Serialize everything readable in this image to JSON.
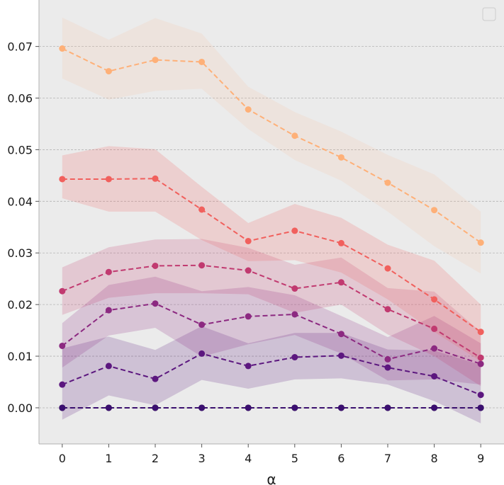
{
  "chart_data": {
    "type": "line",
    "xlabel": "α",
    "ylabel": "",
    "title": "",
    "x": [
      0,
      1,
      2,
      3,
      4,
      5,
      6,
      7,
      8,
      9
    ],
    "x_ticks": [
      "0",
      "1",
      "2",
      "3",
      "4",
      "5",
      "6",
      "7",
      "8",
      "9"
    ],
    "y_ticks": [
      "0.00",
      "0.01",
      "0.02",
      "0.03",
      "0.04",
      "0.05",
      "0.06",
      "0.07"
    ],
    "xlim": [
      -0.5,
      9.5
    ],
    "ylim": [
      -0.007,
      0.079
    ],
    "grid": "horizontal dashed",
    "legend": "top-right, empty",
    "background": "#ebebeb",
    "series": [
      {
        "color": "#000004",
        "values": [
          0.0,
          0.0,
          0.0,
          0.0,
          0.0,
          0.0,
          0.0,
          0.0,
          0.0,
          0.0
        ],
        "lower": [
          0.0,
          0.0,
          0.0,
          0.0,
          0.0,
          0.0,
          0.0,
          0.0,
          0.0,
          0.0
        ],
        "upper": [
          0.0,
          0.0,
          0.0,
          0.0,
          0.0,
          0.0,
          0.0,
          0.0,
          0.0,
          0.0
        ]
      },
      {
        "color": "#3b0f70",
        "values": [
          0.0,
          0.0,
          0.0,
          0.0,
          0.0,
          0.0,
          0.0,
          0.0,
          0.0,
          0.0
        ],
        "lower": [
          0.0,
          0.0,
          0.0,
          0.0,
          0.0,
          0.0,
          0.0,
          0.0,
          0.0,
          0.0
        ],
        "upper": [
          0.0,
          0.0,
          0.0,
          0.0,
          0.0,
          0.0,
          0.0,
          0.0,
          0.0,
          0.0
        ]
      },
      {
        "color": "#5c177f",
        "values": [
          0.0045,
          0.0081,
          0.0056,
          0.0105,
          0.0081,
          0.0098,
          0.0101,
          0.0078,
          0.0061,
          0.0025
        ],
        "lower": [
          -0.0023,
          0.0024,
          0.0005,
          0.0054,
          0.0037,
          0.0055,
          0.0057,
          0.0045,
          0.0013,
          -0.003
        ],
        "upper": [
          0.0115,
          0.0138,
          0.0112,
          0.0158,
          0.0125,
          0.0145,
          0.0145,
          0.0113,
          0.0111,
          0.0083
        ]
      },
      {
        "color": "#8c2981",
        "values": [
          0.012,
          0.0189,
          0.0202,
          0.0161,
          0.0177,
          0.0181,
          0.0143,
          0.0094,
          0.0115,
          0.0085
        ],
        "lower": [
          0.0078,
          0.014,
          0.0155,
          0.0099,
          0.0123,
          0.0141,
          0.0105,
          0.0053,
          0.0055,
          0.0045
        ],
        "upper": [
          0.0164,
          0.0238,
          0.0254,
          0.0226,
          0.0234,
          0.0218,
          0.0178,
          0.0137,
          0.0178,
          0.0125
        ]
      },
      {
        "color": "#c13a70",
        "values": [
          0.0226,
          0.0263,
          0.0275,
          0.0276,
          0.0266,
          0.0231,
          0.0243,
          0.0191,
          0.0153,
          0.0097
        ],
        "lower": [
          0.018,
          0.0213,
          0.0222,
          0.0222,
          0.022,
          0.0184,
          0.02,
          0.0142,
          0.01,
          0.0042
        ],
        "upper": [
          0.0272,
          0.0311,
          0.0326,
          0.0327,
          0.031,
          0.0277,
          0.0291,
          0.0232,
          0.0225,
          0.0147
        ]
      },
      {
        "color": "#f1605d",
        "values": [
          0.0443,
          0.0443,
          0.0444,
          0.0384,
          0.0323,
          0.0343,
          0.0319,
          0.027,
          0.021,
          0.0147
        ],
        "lower": [
          0.0406,
          0.038,
          0.038,
          0.0325,
          0.0284,
          0.0286,
          0.0262,
          0.021,
          0.0147,
          0.009
        ],
        "upper": [
          0.0489,
          0.0507,
          0.0501,
          0.0428,
          0.0358,
          0.0395,
          0.0368,
          0.0316,
          0.0285,
          0.02
        ]
      },
      {
        "color": "#feb078",
        "values": [
          0.0696,
          0.0652,
          0.0674,
          0.067,
          0.0578,
          0.0527,
          0.0485,
          0.0436,
          0.0383,
          0.032
        ],
        "lower": [
          0.0638,
          0.0597,
          0.0614,
          0.0618,
          0.054,
          0.048,
          0.044,
          0.038,
          0.0313,
          0.026
        ],
        "upper": [
          0.0756,
          0.0713,
          0.0755,
          0.0725,
          0.0622,
          0.0573,
          0.0535,
          0.049,
          0.0452,
          0.038
        ]
      }
    ]
  }
}
